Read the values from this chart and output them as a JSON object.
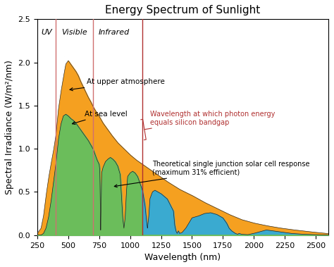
{
  "title": "Energy Spectrum of Sunlight",
  "xlabel": "Wavelength (nm)",
  "ylabel": "Spectral Irradiance (W/m²/nm)",
  "xlim": [
    250,
    2600
  ],
  "ylim": [
    0,
    2.5
  ],
  "uv_boundary": 400,
  "visible_boundary": 700,
  "silicon_bandgap_wl": 1100,
  "uv_label": "UV",
  "visible_label": "Visible",
  "infrared_label": "Infrared",
  "annotation_upper_atm": "At upper atmosphere",
  "annotation_sea_level": "At sea level",
  "annotation_silicon": "Wavelength at which photon energy\nequals silicon bandgap",
  "annotation_solar_cell": "Theoretical single junction solar cell response\n(maximum 31% efficient)",
  "color_upper_atm": "#F5A020",
  "color_sea_level": "#3AAAD0",
  "color_solar_cell": "#6BBD5B",
  "color_boundary_lines": "#D07070",
  "color_silicon_line": "#B03030",
  "background_color": "#ffffff",
  "title_fontsize": 11,
  "axis_fontsize": 9,
  "tick_fontsize": 8,
  "annotation_fontsize": 7.5
}
